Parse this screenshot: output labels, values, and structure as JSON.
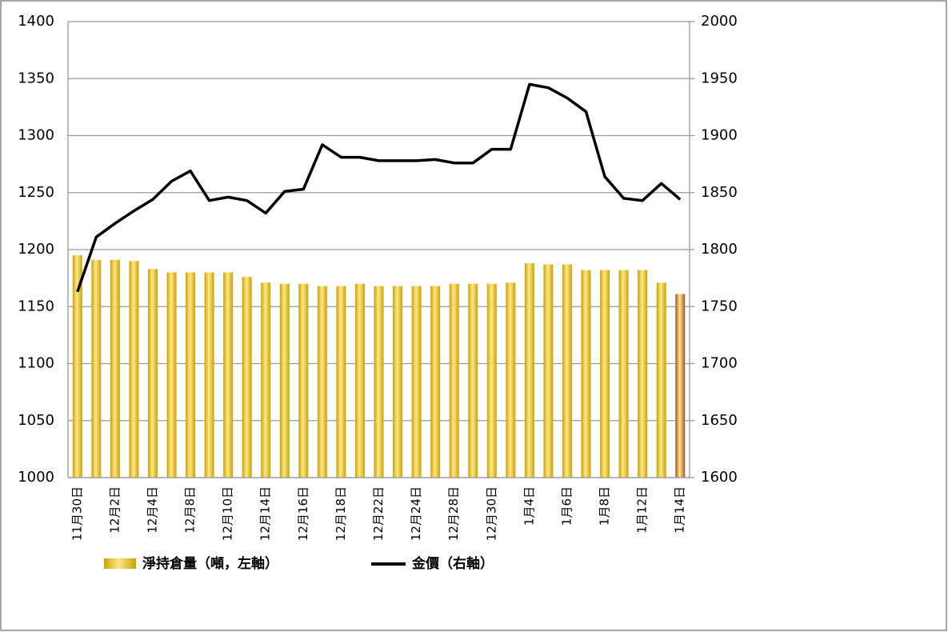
{
  "chart_data": {
    "type": "bar-line",
    "categories": [
      "11月30日",
      null,
      "12月2日",
      null,
      "12月4日",
      null,
      "12月8日",
      null,
      "12月10日",
      null,
      "12月14日",
      null,
      "12月16日",
      null,
      "12月18日",
      null,
      "12月22日",
      null,
      "12月24日",
      null,
      "12月28日",
      null,
      "12月30日",
      null,
      "1月4日",
      null,
      "1月6日",
      null,
      "1月8日",
      null,
      "1月12日",
      null,
      "1月14日"
    ],
    "series": [
      {
        "name": "淨持倉量（噸，左軸）",
        "type": "bar",
        "color": "#c9a100",
        "colors": [
          "#c9a100",
          "#c9a100",
          "#c9a100",
          "#c9a100",
          "#c9a100",
          "#c9a100",
          "#c9a100",
          "#c9a100",
          "#c9a100",
          "#c9a100",
          "#c9a100",
          "#c9a100",
          "#c9a100",
          "#c9a100",
          "#c9a100",
          "#c9a100",
          "#c9a100",
          "#c9a100",
          "#c9a100",
          "#c9a100",
          "#c9a100",
          "#c9a100",
          "#c9a100",
          "#c9a100",
          "#c9a100",
          "#c9a100",
          "#c9a100",
          "#c9a100",
          "#c9a100",
          "#c9a100",
          "#c9a100",
          "#c9a100",
          "#a0522d"
        ],
        "values": [
          1195,
          1191,
          1191,
          1190,
          1183,
          1180,
          1180,
          1180,
          1180,
          1176,
          1171,
          1170,
          1170,
          1168,
          1168,
          1170,
          1168,
          1168,
          1168,
          1168,
          1170,
          1170,
          1170,
          1171,
          1188,
          1187,
          1187,
          1182,
          1182,
          1182,
          1182,
          1171,
          1161
        ]
      },
      {
        "name": "金價（右軸）",
        "type": "line",
        "axis": "y2",
        "color": "#000000",
        "values": [
          1763,
          1811,
          1823,
          1834,
          1844,
          1860,
          1869,
          1843,
          1846,
          1843,
          1832,
          1851,
          1853,
          1892,
          1881,
          1881,
          1878,
          1878,
          1878,
          1879,
          1876,
          1876,
          1888,
          1888,
          1945,
          1942,
          1933,
          1921,
          1864,
          1845,
          1843,
          1858,
          1844
        ]
      }
    ],
    "ylim": [
      1000,
      1400
    ],
    "yticks": [
      1000,
      1050,
      1100,
      1150,
      1200,
      1250,
      1300,
      1350,
      1400
    ],
    "y2lim": [
      1600,
      2000
    ],
    "y2ticks": [
      1600,
      1650,
      1700,
      1750,
      1800,
      1850,
      1900,
      1950,
      2000
    ],
    "grid": true
  }
}
